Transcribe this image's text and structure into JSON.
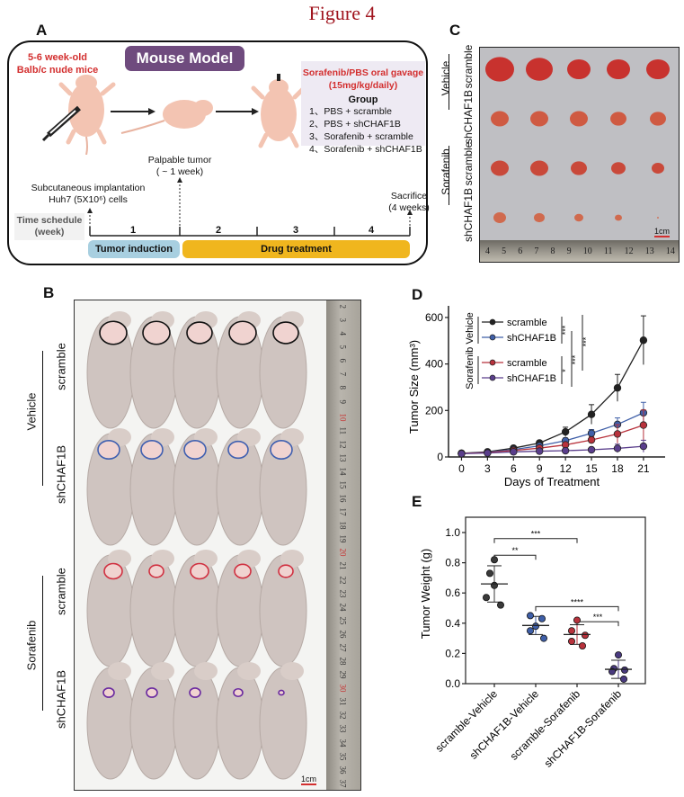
{
  "figure_title": "Figure 4",
  "panels": {
    "A": {
      "letter": "A",
      "mice_label_line1": "5-6 week-old",
      "mice_label_line2": "Balb/c nude mice",
      "model_title": "Mouse Model",
      "gavage_line1": "Sorafenib/PBS oral gavage",
      "gavage_line2": "(15mg/kg/daily)",
      "group_title": "Group",
      "groups": [
        "1、PBS + scramble",
        "2、PBS + shCHAF1B",
        "3、Sorafenib + scramble",
        "4、Sorafenib + shCHAF1B"
      ],
      "palpable_line1": "Palpable tumor",
      "palpable_line2": "( ~ 1 week)",
      "implant_line1": "Subcutaneous implantation",
      "implant_line2": "Huh7 (5X10⁶) cells",
      "sacrifice_line1": "Sacrifice",
      "sacrifice_line2": "(4 weeks)",
      "time_schedule_line1": "Time schedule",
      "time_schedule_line2": "(week)",
      "weeks": [
        "1",
        "2",
        "3",
        "4"
      ],
      "phase_tumor_induction": "Tumor induction",
      "phase_drug_treatment": "Drug treatment",
      "colors": {
        "title_red": "#d32f2f",
        "model_purple": "#6f4b7e",
        "induction_blue": "#a8cfe0",
        "treatment_yellow": "#f0b61e"
      }
    },
    "B": {
      "letter": "B",
      "group_labels": [
        "Vehicle",
        "Sorafenib"
      ],
      "row_labels": [
        "scramble",
        "shCHAF1B",
        "scramble",
        "shCHAF1B"
      ],
      "row_outline_colors": [
        "#111111",
        "#3f5fb0",
        "#d03040",
        "#6a2aa0"
      ],
      "ruler_numbers": [
        "2",
        "3",
        "4",
        "5",
        "6",
        "7",
        "8",
        "9",
        "10",
        "11",
        "12",
        "13",
        "14",
        "15",
        "16",
        "17",
        "18",
        "19",
        "20",
        "21",
        "22",
        "23",
        "24",
        "25",
        "26",
        "27",
        "28",
        "29",
        "30",
        "31",
        "32",
        "33",
        "34",
        "35",
        "36",
        "37"
      ],
      "scale_bar": "1cm"
    },
    "C": {
      "letter": "C",
      "group_labels": [
        "Vehicle",
        "Sorafenib"
      ],
      "row_labels": [
        "scramble",
        "shCHAF1B",
        "scramble",
        "shCHAF1B"
      ],
      "ruler_numbers": [
        "4",
        "5",
        "6",
        "7",
        "8",
        "9",
        "10",
        "11",
        "12",
        "13",
        "14"
      ],
      "scale_bar": "1cm"
    },
    "D": {
      "letter": "D"
    },
    "E": {
      "letter": "E"
    }
  },
  "chart_data": [
    {
      "id": "D",
      "type": "line",
      "title": "",
      "xlabel": "Days of Treatment",
      "ylabel": "Tumor Size (mm³)",
      "x": [
        0,
        3,
        6,
        9,
        12,
        15,
        18,
        21
      ],
      "xlim": [
        -1.5,
        23.5
      ],
      "ylim": [
        0,
        650
      ],
      "yticks": [
        0,
        200,
        400,
        600
      ],
      "legend_group_label": "Sorafenib Vehicle",
      "legend_placement": "top-left",
      "series": [
        {
          "name": "scramble",
          "group": "Vehicle",
          "color": "#222222",
          "values": [
            16,
            22,
            38,
            60,
            108,
            183,
            297,
            502
          ],
          "errors": [
            5,
            6,
            8,
            10,
            20,
            42,
            58,
            105
          ]
        },
        {
          "name": "shCHAF1B",
          "group": "Vehicle",
          "color": "#3f5fa8",
          "values": [
            15,
            20,
            32,
            48,
            70,
            102,
            140,
            190
          ],
          "errors": [
            4,
            5,
            7,
            9,
            12,
            16,
            28,
            45
          ]
        },
        {
          "name": "scramble",
          "group": "Sorafenib",
          "color": "#b8323c",
          "values": [
            15,
            19,
            28,
            38,
            52,
            73,
            99,
            137
          ],
          "errors": [
            4,
            5,
            6,
            8,
            10,
            14,
            40,
            65
          ]
        },
        {
          "name": "shCHAF1B",
          "group": "Sorafenib",
          "color": "#5a3e8c",
          "values": [
            14,
            17,
            22,
            25,
            27,
            31,
            37,
            46
          ],
          "errors": [
            3,
            4,
            5,
            6,
            7,
            10,
            18,
            26
          ]
        }
      ],
      "significance": [
        "***",
        "*",
        "***",
        "***"
      ]
    },
    {
      "id": "E",
      "type": "scatter",
      "title": "",
      "xlabel": "",
      "ylabel": "Tumor Weight (g)",
      "ylim": [
        0,
        1.05
      ],
      "yticks": [
        "0.0",
        "0.2",
        "0.4",
        "0.6",
        "0.8",
        "1.0"
      ],
      "categories": [
        "scramble-Vehicle",
        "shCHAF1B-Vehicle",
        "scramble-Sorafenib",
        "shCHAF1B-Sorafenib"
      ],
      "groups": [
        {
          "name": "scramble-Vehicle",
          "color": "#3a3a3a",
          "points": [
            0.82,
            0.73,
            0.65,
            0.57,
            0.52
          ],
          "mean": 0.66,
          "sd": 0.12
        },
        {
          "name": "shCHAF1B-Vehicle",
          "color": "#3f5fa8",
          "points": [
            0.45,
            0.43,
            0.38,
            0.35,
            0.3
          ],
          "mean": 0.385,
          "sd": 0.06
        },
        {
          "name": "scramble-Sorafenib",
          "color": "#b8323c",
          "points": [
            0.42,
            0.35,
            0.32,
            0.28,
            0.25
          ],
          "mean": 0.325,
          "sd": 0.065
        },
        {
          "name": "shCHAF1B-Sorafenib",
          "color": "#4a3a80",
          "points": [
            0.19,
            0.1,
            0.09,
            0.08,
            0.03
          ],
          "mean": 0.095,
          "sd": 0.06
        }
      ],
      "significance": [
        {
          "from": 0,
          "to": 2,
          "label": "***",
          "y": 0.96
        },
        {
          "from": 0,
          "to": 1,
          "label": "**",
          "y": 0.85
        },
        {
          "from": 1,
          "to": 3,
          "label": "****",
          "y": 0.51
        },
        {
          "from": 2,
          "to": 3,
          "label": "***",
          "y": 0.41
        }
      ]
    }
  ]
}
